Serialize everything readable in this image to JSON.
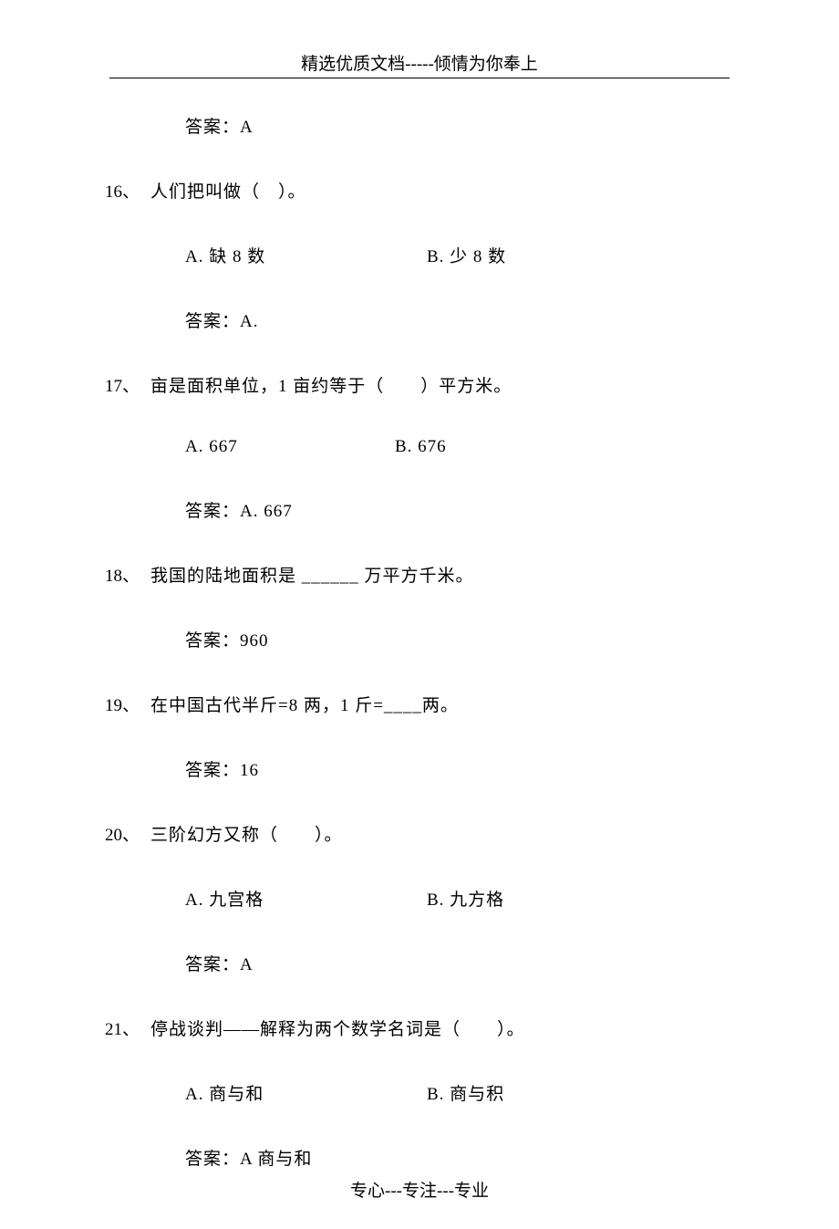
{
  "header": "精选优质文档-----倾情为你奉上",
  "footer": "专心---专注---专业",
  "initial_answer": "答案：A",
  "questions": {
    "q16": {
      "num": "16、",
      "text": "人们把叫做（　）。",
      "opt_a": "A.  缺 8 数",
      "opt_b": "B.  少 8 数",
      "answer": "答案：A."
    },
    "q17": {
      "num": "17、",
      "text": "亩是面积单位，1 亩约等于（　　）平方米。",
      "opt_a": "A.  667",
      "opt_b": "B. 676",
      "answer": "答案：A. 667"
    },
    "q18": {
      "num": "18、",
      "text": "我国的陆地面积是  ______  万平方千米。",
      "answer": "答案：960"
    },
    "q19": {
      "num": "19、",
      "text": "在中国古代半斤=8 两，1 斤=____两。",
      "answer": "答案：16"
    },
    "q20": {
      "num": "20、",
      "text": "三阶幻方又称（　　）。",
      "opt_a": "A.  九宫格",
      "opt_b": "B.  九方格",
      "answer": "答案：A"
    },
    "q21": {
      "num": "21、",
      "text": "停战谈判——解释为两个数学名词是（　　）。",
      "opt_a": "A.  商与和",
      "opt_b": "B.  商与积",
      "answer": "答案：A 商与和"
    }
  }
}
